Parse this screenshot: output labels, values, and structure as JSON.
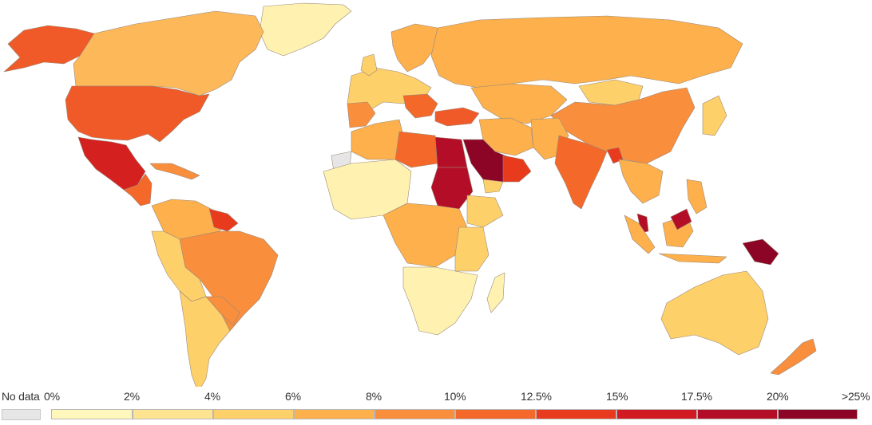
{
  "legend": {
    "no_data_label": "No data",
    "no_data_color": "#e6e6e6",
    "bin_labels": [
      "0%",
      "2%",
      "4%",
      "6%",
      "8%",
      "10%",
      "12.5%",
      "15%",
      "17.5%",
      "20%",
      ">25%"
    ],
    "bin_colors": [
      "#fff7bc",
      "#fee391",
      "#fed06a",
      "#fdb04b",
      "#f98e3d",
      "#f4682a",
      "#e83a1d",
      "#d11a21",
      "#b40d27",
      "#8c0526"
    ]
  },
  "colors": {
    "ocean": "#ffffff",
    "border": "#9a8a7a"
  }
}
